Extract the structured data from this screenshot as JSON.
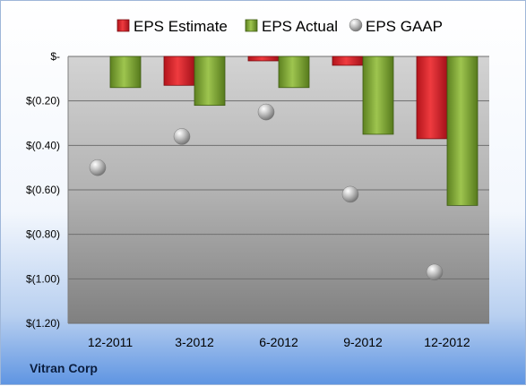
{
  "company": "Vitran Corp",
  "colors": {
    "estimate": "#e0222a",
    "actual": "#7fa72f",
    "gaap": "#a6a6a6"
  },
  "chart_data": {
    "type": "bar",
    "categories": [
      "12-2011",
      "3-2012",
      "6-2012",
      "9-2012",
      "12-2012"
    ],
    "series": [
      {
        "name": "EPS Estimate",
        "kind": "bar",
        "values": [
          null,
          -0.13,
          -0.02,
          -0.04,
          -0.37
        ]
      },
      {
        "name": "EPS Actual",
        "kind": "bar",
        "values": [
          -0.14,
          -0.22,
          -0.14,
          -0.35,
          -0.67
        ]
      },
      {
        "name": "EPS GAAP",
        "kind": "scatter",
        "values": [
          -0.5,
          -0.36,
          -0.25,
          -0.62,
          -0.97
        ]
      }
    ],
    "ylim": [
      -1.2,
      0
    ],
    "yticks": [
      0,
      -0.2,
      -0.4,
      -0.6,
      -0.8,
      -1.0,
      -1.2
    ],
    "ytick_labels": [
      "$-",
      "$(0.20)",
      "$(0.40)",
      "$(0.60)",
      "$(0.80)",
      "$(1.00)",
      "$(1.20)"
    ],
    "grid": true,
    "legend": "top"
  }
}
